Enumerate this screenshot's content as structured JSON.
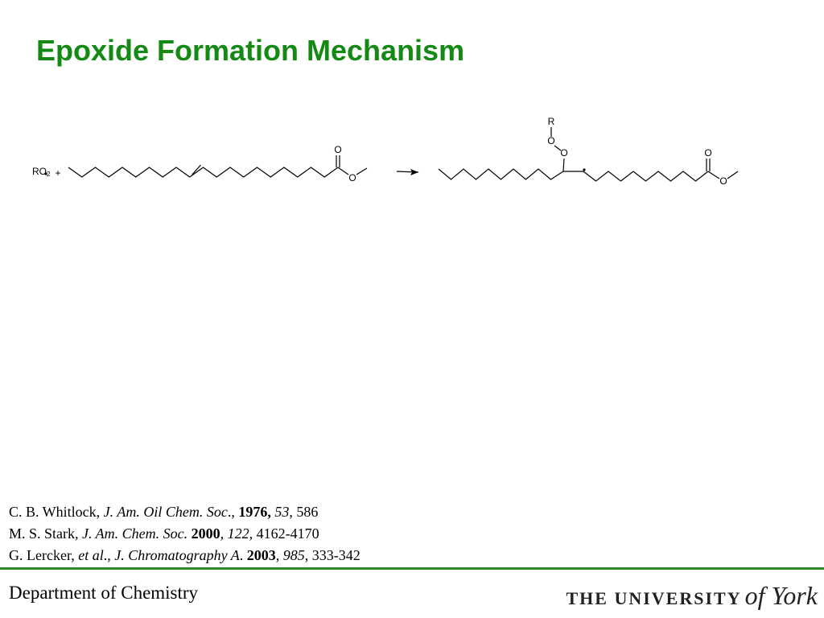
{
  "title": "Epoxide Formation Mechanism",
  "scheme": {
    "radical": {
      "label": "RO",
      "subscript": "2"
    },
    "plus": "+",
    "atoms": [
      "O",
      "O",
      "R",
      "O",
      "O",
      "O",
      "O"
    ]
  },
  "references": [
    [
      {
        "text": "C. B. Whitlock, ",
        "style": "normal"
      },
      {
        "text": "J. Am. Oil Chem. Soc",
        "style": "italic"
      },
      {
        "text": "., ",
        "style": "normal"
      },
      {
        "text": "1976,",
        "style": "bold"
      },
      {
        "text": " ",
        "style": "normal"
      },
      {
        "text": "53",
        "style": "italic"
      },
      {
        "text": ", 586",
        "style": "normal"
      }
    ],
    [
      {
        "text": "M. S. Stark",
        "style": "normal"
      },
      {
        "text": ", J. Am. Chem. Soc.",
        "style": "italic"
      },
      {
        "text": " ",
        "style": "normal"
      },
      {
        "text": "2000",
        "style": "bold"
      },
      {
        "text": ", 122,",
        "style": "italic"
      },
      {
        "text": " 4162-4170",
        "style": "normal"
      }
    ],
    [
      {
        "text": "G. Lercker, ",
        "style": "normal"
      },
      {
        "text": "et al",
        "style": "italic"
      },
      {
        "text": "., ",
        "style": "normal"
      },
      {
        "text": "J. Chromatography A",
        "style": "italic"
      },
      {
        "text": ". ",
        "style": "normal"
      },
      {
        "text": "2003",
        "style": "bold"
      },
      {
        "text": ", ",
        "style": "normal"
      },
      {
        "text": "985",
        "style": "italic"
      },
      {
        "text": ", 333-342",
        "style": "normal"
      }
    ]
  ],
  "footer": {
    "department": "Department of Chemistry",
    "university": "THE UNIVERSITY",
    "of_york": "of York"
  }
}
